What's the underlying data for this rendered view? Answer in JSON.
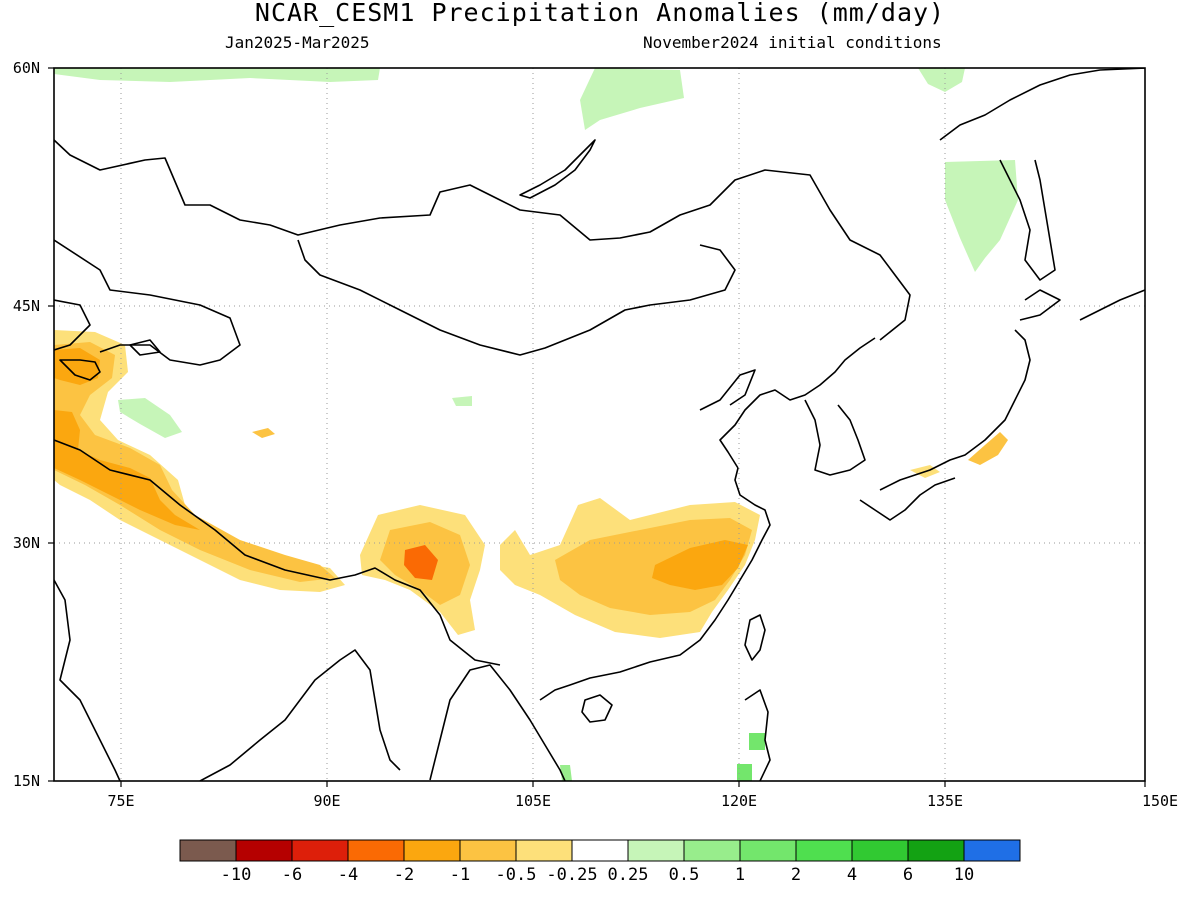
{
  "header": {
    "title": "NCAR_CESM1 Precipitation Anomalies (mm/day)",
    "period": "Jan2025-Mar2025",
    "init": "November2024 initial conditions"
  },
  "axes": {
    "lat_labels": [
      "60N",
      "45N",
      "30N",
      "15N"
    ],
    "lon_labels": [
      "75E",
      "90E",
      "105E",
      "120E",
      "135E",
      "150E"
    ]
  },
  "colorbar": {
    "colors": [
      "#7b5a4e",
      "#b50000",
      "#dd1f0a",
      "#fa6a04",
      "#fba70f",
      "#fcc342",
      "#fde07a",
      "#ffffff",
      "#c6f5b8",
      "#98ed8c",
      "#73e66c",
      "#4fdf4f",
      "#31c932",
      "#13a213",
      "#1f6fe6"
    ],
    "labels": [
      "-10",
      "-6",
      "-4",
      "-2",
      "-1",
      "-0.5",
      "-0.25",
      "0.25",
      "0.5",
      "1",
      "2",
      "4",
      "6",
      "10"
    ]
  },
  "legend_colors": {
    "dry_light": "#fde07a",
    "dry_mid": "#fcc342",
    "dry_strong": "#fba70f",
    "dry_peak": "#fa6a04",
    "wet_light": "#c6f5b8",
    "wet_mid": "#73e66c"
  }
}
